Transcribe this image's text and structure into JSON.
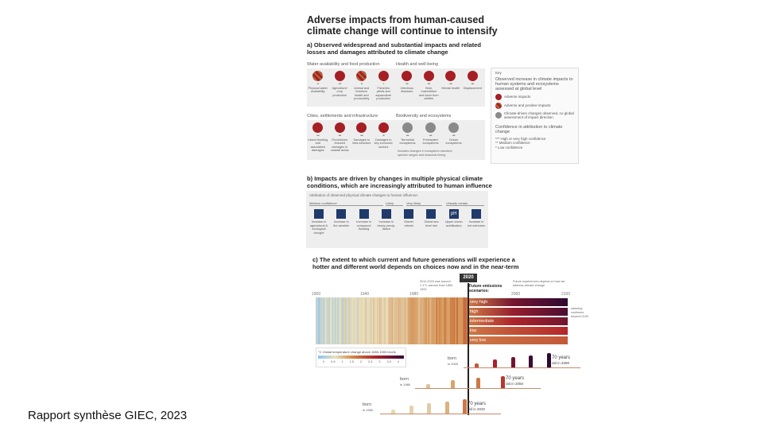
{
  "title": "Adverse impacts from human-caused climate change will continue to intensify",
  "panel_a": {
    "heading": "a) Observed widespread and substantial impacts and related losses and damages attributed to climate change",
    "groups": [
      {
        "label": "Water availability and food production",
        "items": [
          {
            "label": "Physical water availability",
            "stars": "**",
            "kind": "mix"
          },
          {
            "label": "Agriculture/ crop production",
            "stars": "***",
            "kind": "red"
          },
          {
            "label": "Animal and livestock health and productivity",
            "stars": "**",
            "kind": "mix"
          },
          {
            "label": "Fisheries yields and aquaculture production",
            "stars": "*",
            "kind": "red"
          }
        ]
      },
      {
        "label": "Health and well-being",
        "items": [
          {
            "label": "Infectious diseases",
            "stars": "***",
            "kind": "red"
          },
          {
            "label": "Heat, malnutrition and harm from wildfire",
            "stars": "***",
            "kind": "red"
          },
          {
            "label": "Mental health",
            "stars": "***",
            "kind": "red"
          },
          {
            "label": "Displacement",
            "stars": "***",
            "kind": "red"
          }
        ]
      },
      {
        "label": "Cities, settlements and infrastructure",
        "items": [
          {
            "label": "Inland flooding and associated damages",
            "stars": "***",
            "kind": "red"
          },
          {
            "label": "Flood/storm induced damages in coastal areas",
            "stars": "***",
            "kind": "red"
          },
          {
            "label": "Damages to infra-structure",
            "stars": "***",
            "kind": "red"
          },
          {
            "label": "Damages to key economic sectors",
            "stars": "**",
            "kind": "red"
          }
        ]
      },
      {
        "label": "Biodiversity and ecosystems",
        "items": [
          {
            "label": "Terrestrial ecosystems",
            "stars": "***",
            "kind": "gray"
          },
          {
            "label": "Freshwater ecosystems",
            "stars": "***",
            "kind": "gray"
          },
          {
            "label": "Ocean ecosystems",
            "stars": "***",
            "kind": "gray"
          }
        ],
        "note": "Includes changes in ecosystem structure, species ranges and seasonal timing"
      }
    ],
    "key": {
      "label": "Key",
      "title": "Observed increase in climate impacts to human systems and ecosystems assessed at global level",
      "entries": [
        "Adverse impacts",
        "Adverse and positive impacts",
        "Climate-driven changes observed, no global assessment of impact direction"
      ],
      "confidence_title": "Confidence in attribution to climate change",
      "confidence": [
        "*** High or very high confidence",
        "** Medium confidence",
        "* Low confidence"
      ]
    }
  },
  "panel_b": {
    "heading": "b) Impacts are driven by changes in multiple physical climate conditions, which are increasingly attributed to human influence",
    "subtitle": "Attribution of observed physical climate changes to human influence:",
    "categories": [
      "Medium confidence",
      "Likely",
      "Very likely",
      "Virtually certain"
    ],
    "items": [
      "Increase in agricultural & ecological drought",
      "Increase in fire weather",
      "Increase in compound flooding",
      "Increase in heavy precip-itation",
      "Glacier retreat",
      "Global sea level rise",
      "Upper ocean acidification",
      "Increase in hot extremes"
    ]
  },
  "panel_c": {
    "heading": "c) The extent to which current and future generations will experience a hotter and different world depends on choices now and in the near-term",
    "year_marker": "2020",
    "note_2011": "2011-2020 was around 1.1°C warmer than 1850-1900",
    "note_future": "Future experiences depend on how we address climate change",
    "scenarios_label": "Future emissions scenarios:",
    "years": [
      "1900",
      "1940",
      "1980",
      "2060",
      "2100"
    ],
    "scenarios": [
      "very high",
      "high",
      "intermediate",
      "low",
      "very low"
    ],
    "side_note": "warming continues beyond 2100",
    "legend_title": "°C Global temperature change above 1850-1900 levels",
    "legend_ticks": [
      "0",
      "0.5",
      "1",
      "1.5",
      "2",
      "2.5",
      "3",
      "3.5",
      "4"
    ],
    "generations": [
      {
        "born": "born",
        "born_year": "in 2020",
        "old": "70 years",
        "old_year": "old in 2090"
      },
      {
        "born": "born",
        "born_year": "in 1980",
        "old": "70 years",
        "old_year": "old in 2050"
      },
      {
        "born": "born",
        "born_year": "in 1950",
        "old": "70 years",
        "old_year": "old in 2020"
      }
    ],
    "colors": {
      "cool": "#8fc3ea",
      "neutral": "#e8e0c0",
      "warm": "#d28a4a",
      "hot": "#b3262a",
      "very_hot": "#3a0a3a"
    }
  },
  "caption": "Rapport synthèse GIEC, 2023"
}
